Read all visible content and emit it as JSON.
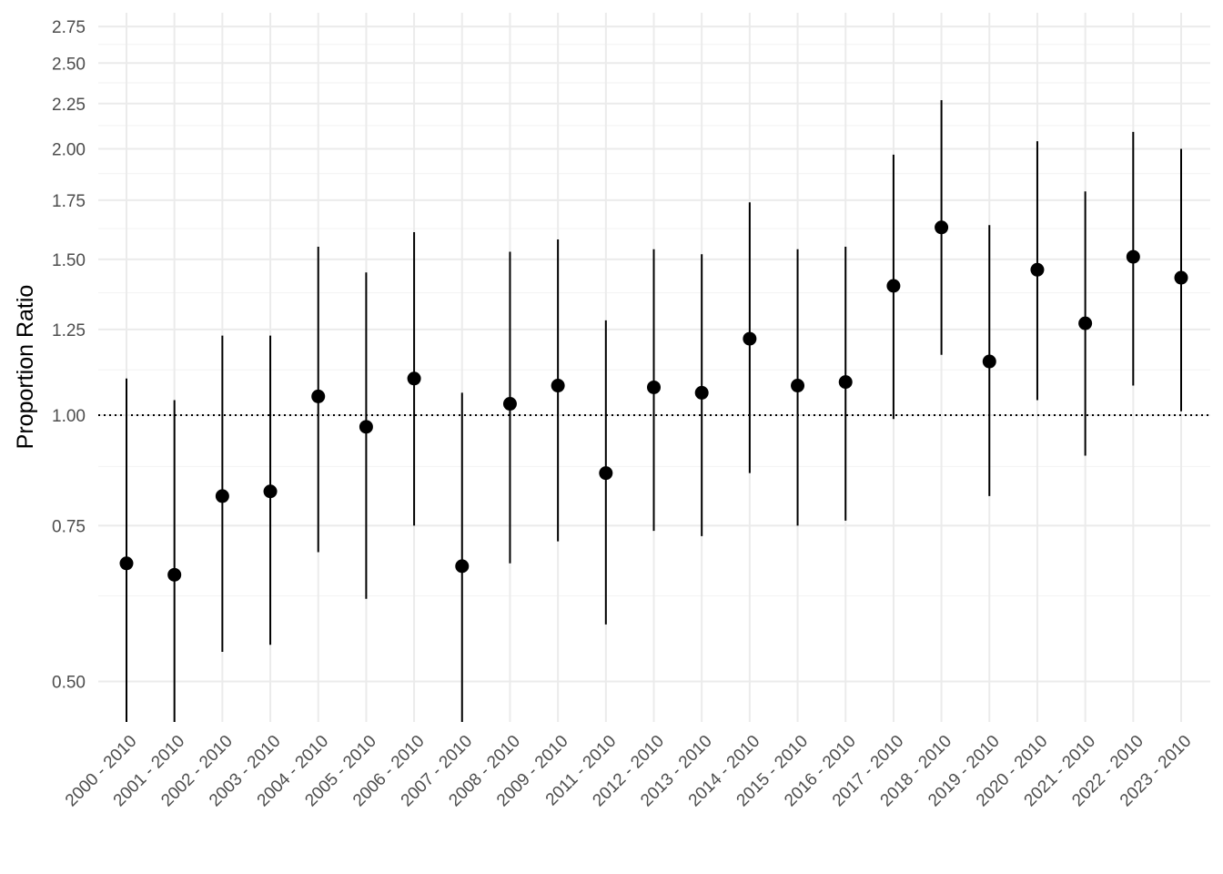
{
  "chart_data": {
    "type": "scatter",
    "title": "",
    "xlabel": "",
    "ylabel": "Proportion Ratio",
    "y_scale": "log",
    "ylim": [
      0.45,
      2.85
    ],
    "y_ticks": [
      0.5,
      0.75,
      1.0,
      1.25,
      1.5,
      1.75,
      2.0,
      2.25,
      2.5,
      2.75
    ],
    "y_tick_labels": [
      "0.50",
      "0.75",
      "1.00",
      "1.25",
      "1.50",
      "1.75",
      "2.00",
      "2.25",
      "2.50",
      "2.75"
    ],
    "reference_line": 1.0,
    "grid": true,
    "categories": [
      "2000 - 2010",
      "2001 - 2010",
      "2002 - 2010",
      "2003 - 2010",
      "2004 - 2010",
      "2005 - 2010",
      "2006 - 2010",
      "2007 - 2010",
      "2008 - 2010",
      "2009 - 2010",
      "2011 - 2010",
      "2012 - 2010",
      "2013 - 2010",
      "2014 - 2010",
      "2015 - 2010",
      "2016 - 2010",
      "2017 - 2010",
      "2018 - 2010",
      "2019 - 2010",
      "2020 - 2010",
      "2021 - 2010",
      "2022 - 2010",
      "2023 - 2010"
    ],
    "estimate": [
      0.68,
      0.66,
      0.81,
      0.82,
      1.05,
      0.97,
      1.1,
      0.675,
      1.03,
      1.08,
      0.86,
      1.075,
      1.06,
      1.22,
      1.08,
      1.09,
      1.4,
      1.63,
      1.15,
      1.46,
      1.27,
      1.51,
      1.43
    ],
    "lower": [
      0.45,
      0.45,
      0.54,
      0.55,
      0.7,
      0.62,
      0.75,
      0.45,
      0.68,
      0.72,
      0.58,
      0.74,
      0.73,
      0.86,
      0.75,
      0.76,
      0.99,
      1.17,
      0.81,
      1.04,
      0.9,
      1.08,
      1.01
    ],
    "upper": [
      1.1,
      1.04,
      1.23,
      1.23,
      1.55,
      1.45,
      1.61,
      1.06,
      1.53,
      1.58,
      1.28,
      1.54,
      1.52,
      1.74,
      1.54,
      1.55,
      1.97,
      2.27,
      1.64,
      2.04,
      1.79,
      2.09,
      2.0
    ]
  }
}
